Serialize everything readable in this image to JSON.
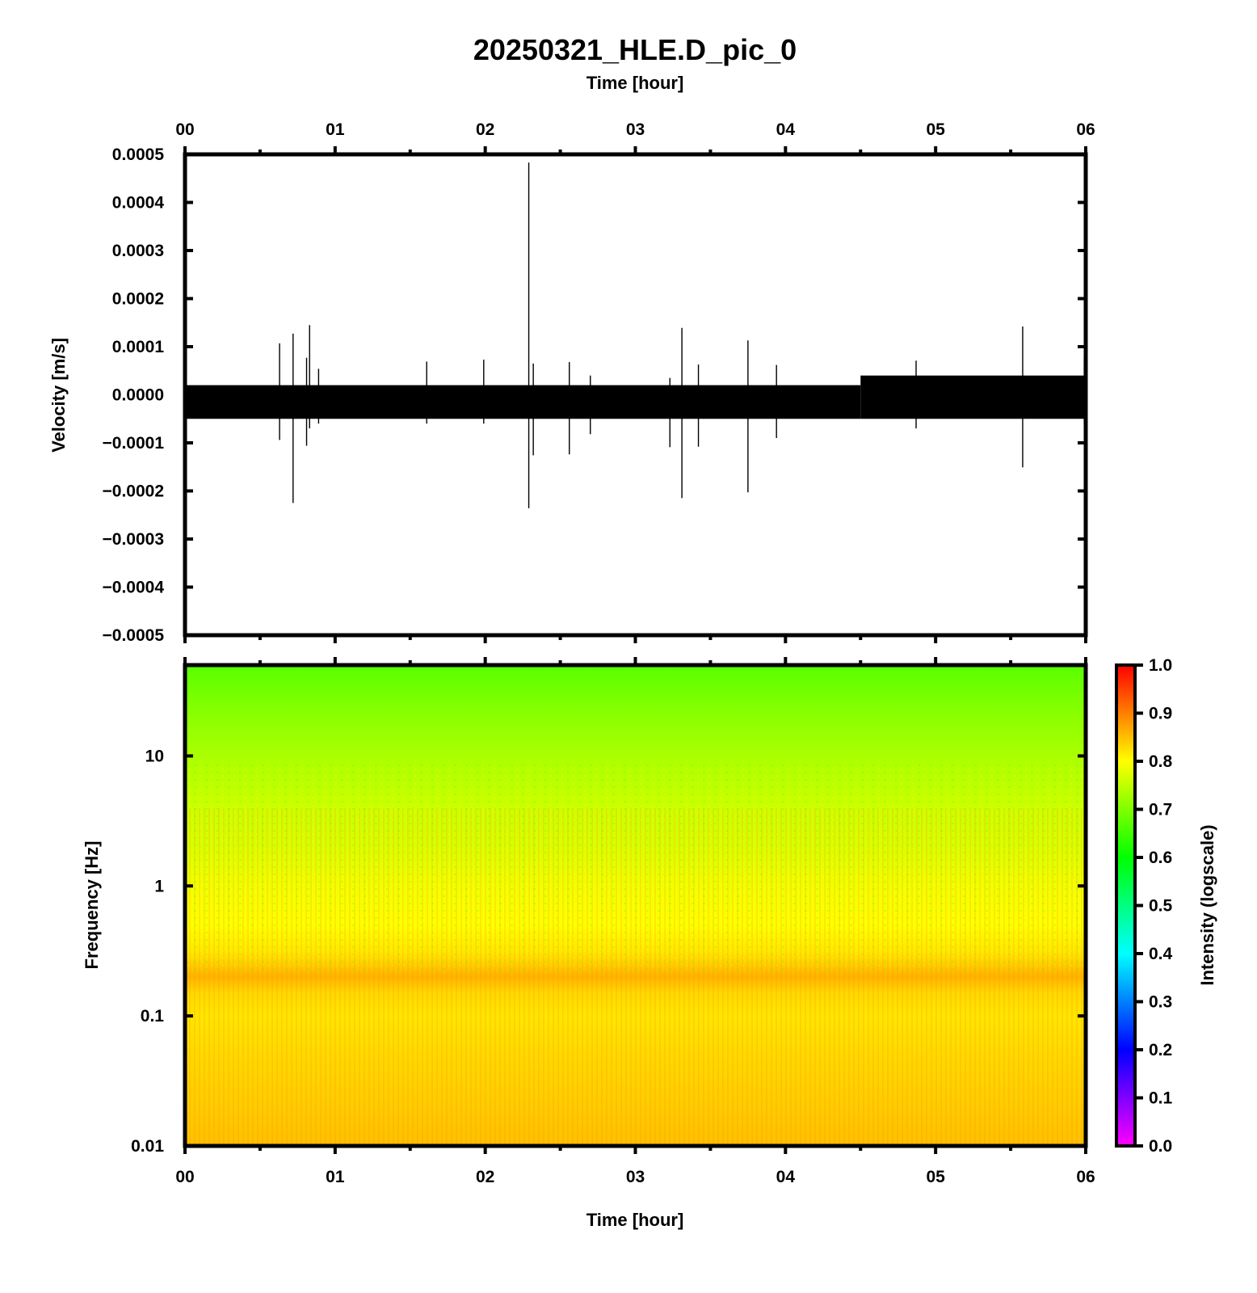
{
  "title": "20250321_HLE.D_pic_0",
  "chart_data": [
    {
      "type": "line",
      "panel": "waveform",
      "title": "20250321_HLE.D_pic_0",
      "xlabel": "Time [hour]",
      "ylabel": "Velocity [m/s]",
      "xlim": [
        0,
        6
      ],
      "ylim": [
        -0.0005,
        0.0005
      ],
      "x_ticks": [
        "00",
        "01",
        "02",
        "03",
        "04",
        "05",
        "06"
      ],
      "y_ticks": [
        "0.0005",
        "0.0004",
        "0.0003",
        "0.0002",
        "0.0001",
        "0.0000",
        "−0.0001",
        "−0.0002",
        "−0.0003",
        "−0.0004",
        "−0.0005"
      ],
      "y_tick_values": [
        0.0005,
        0.0004,
        0.0003,
        0.0002,
        0.0001,
        0,
        -0.0001,
        -0.0002,
        -0.0003,
        -0.0004,
        -0.0005
      ],
      "noise_band": [
        {
          "from": 0,
          "to": 4.5,
          "upper": 2e-05,
          "lower": -5e-05
        },
        {
          "from": 4.5,
          "to": 6,
          "upper": 4e-05,
          "lower": -5e-05
        }
      ],
      "spikes": [
        {
          "t": 0.63,
          "max": 0.000107,
          "min": -9.4e-05
        },
        {
          "t": 0.72,
          "max": 0.000127,
          "min": -0.000225
        },
        {
          "t": 0.81,
          "max": 7.7e-05,
          "min": -0.000106
        },
        {
          "t": 0.83,
          "max": 0.000145,
          "min": -7e-05
        },
        {
          "t": 0.89,
          "max": 5.4e-05,
          "min": -6e-05
        },
        {
          "t": 1.61,
          "max": 6.9e-05,
          "min": -6e-05
        },
        {
          "t": 1.99,
          "max": 7.3e-05,
          "min": -6e-05
        },
        {
          "t": 2.29,
          "max": 0.000483,
          "min": -0.000236
        },
        {
          "t": 2.32,
          "max": 6.5e-05,
          "min": -0.000126
        },
        {
          "t": 2.56,
          "max": 6.8e-05,
          "min": -0.000124
        },
        {
          "t": 2.7,
          "max": 4e-05,
          "min": -8.2e-05
        },
        {
          "t": 3.23,
          "max": 3.5e-05,
          "min": -0.000109
        },
        {
          "t": 3.31,
          "max": 0.000139,
          "min": -0.000215
        },
        {
          "t": 3.42,
          "max": 6.3e-05,
          "min": -0.000108
        },
        {
          "t": 3.75,
          "max": 0.000113,
          "min": -0.000203
        },
        {
          "t": 3.94,
          "max": 6.2e-05,
          "min": -9e-05
        },
        {
          "t": 4.87,
          "max": 7.1e-05,
          "min": -7e-05
        },
        {
          "t": 5.58,
          "max": 0.000142,
          "min": -0.000151
        },
        {
          "t": 5.99,
          "max": 7.5e-05,
          "min": -6e-05
        }
      ]
    },
    {
      "type": "heatmap",
      "panel": "spectrogram",
      "xlabel": "Time [hour]",
      "ylabel": "Frequency [Hz]",
      "xlim": [
        0,
        6
      ],
      "ylim": [
        0.01,
        50
      ],
      "yscale": "log",
      "x_ticks": [
        "00",
        "01",
        "02",
        "03",
        "04",
        "05",
        "06"
      ],
      "y_ticks": [
        "10",
        "1",
        "0.1",
        "0.01"
      ],
      "y_tick_values": [
        10,
        1,
        0.1,
        0.01
      ],
      "intensity_by_frequency": [
        {
          "f": 50,
          "v": 0.67
        },
        {
          "f": 20,
          "v": 0.71
        },
        {
          "f": 8,
          "v": 0.74
        },
        {
          "f": 4,
          "v": 0.76
        },
        {
          "f": 2,
          "v": 0.77
        },
        {
          "f": 1,
          "v": 0.79
        },
        {
          "f": 0.5,
          "v": 0.8
        },
        {
          "f": 0.3,
          "v": 0.82
        },
        {
          "f": 0.2,
          "v": 0.86
        },
        {
          "f": 0.15,
          "v": 0.83
        },
        {
          "f": 0.1,
          "v": 0.82
        },
        {
          "f": 0.05,
          "v": 0.83
        },
        {
          "f": 0.02,
          "v": 0.84
        },
        {
          "f": 0.01,
          "v": 0.85
        }
      ],
      "colorbar": {
        "label": "Intensity (logscale)",
        "range": [
          0,
          1
        ],
        "ticks": [
          "1.0",
          "0.9",
          "0.8",
          "0.7",
          "0.6",
          "0.5",
          "0.4",
          "0.3",
          "0.2",
          "0.1",
          "0.0"
        ],
        "tick_values": [
          1,
          0.9,
          0.8,
          0.7,
          0.6,
          0.5,
          0.4,
          0.3,
          0.2,
          0.1,
          0
        ],
        "colors": [
          "#ff00ff",
          "#0000ff",
          "#00ffff",
          "#00ff00",
          "#ffff00",
          "#ff0000"
        ]
      }
    }
  ]
}
